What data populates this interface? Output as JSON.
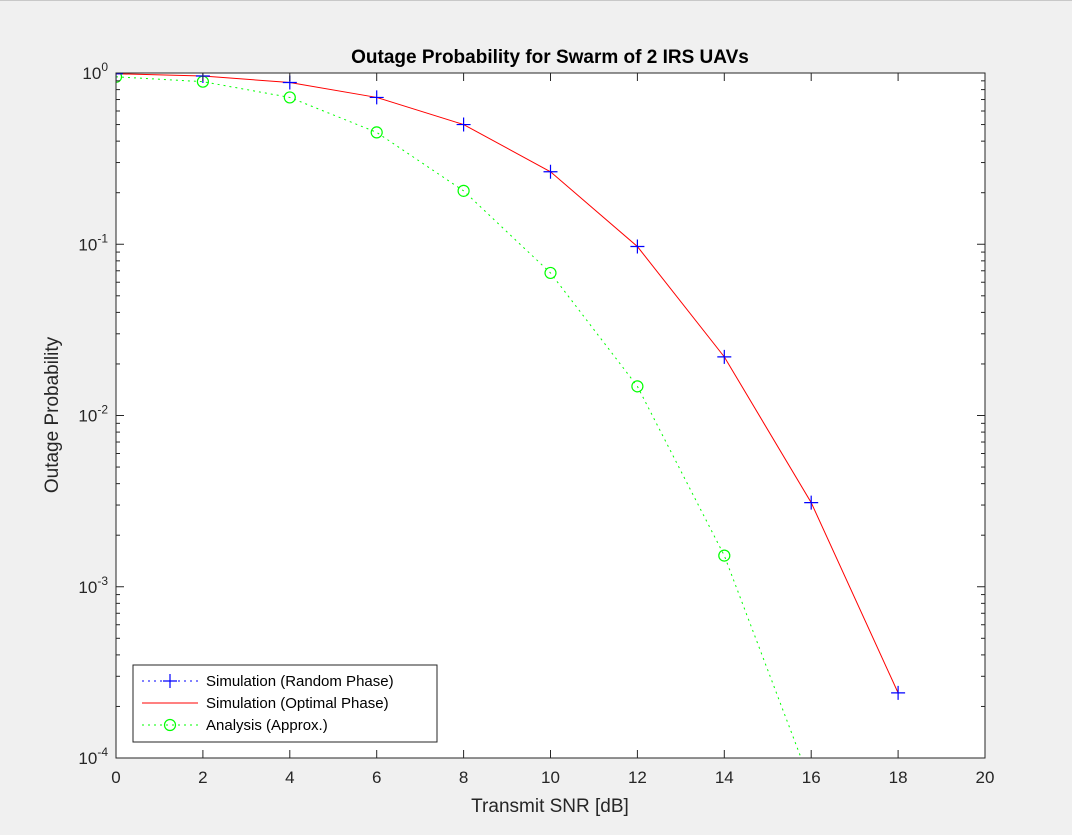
{
  "chart_data": {
    "type": "line",
    "title": "Outage Probability for Swarm of 2 IRS UAVs",
    "xlabel": "Transmit SNR [dB]",
    "ylabel": "Outage Probability",
    "xlim": [
      0,
      20
    ],
    "ylim": [
      0.0001,
      1
    ],
    "yscale": "log",
    "grid": false,
    "legend_position": "bottom-left",
    "x_ticks": [
      0,
      2,
      4,
      6,
      8,
      10,
      12,
      14,
      16,
      18,
      20
    ],
    "x_tick_labels": [
      "0",
      "2",
      "4",
      "6",
      "8",
      "10",
      "12",
      "14",
      "16",
      "18",
      "20"
    ],
    "y_ticks": [
      {
        "value": 1,
        "base": "10",
        "exp": "0"
      },
      {
        "value": 0.1,
        "base": "10",
        "exp": "-1"
      },
      {
        "value": 0.01,
        "base": "10",
        "exp": "-2"
      },
      {
        "value": 0.001,
        "base": "10",
        "exp": "-3"
      },
      {
        "value": 0.0001,
        "base": "10",
        "exp": "-4"
      }
    ],
    "series": [
      {
        "name": "Simulation (Random Phase)",
        "color": "#0000ff",
        "line_style": "dotted",
        "marker": "plus",
        "x": [
          0,
          2,
          4,
          6,
          8,
          10,
          12,
          14,
          16,
          18
        ],
        "y": [
          0.99,
          0.96,
          0.88,
          0.72,
          0.5,
          0.265,
          0.097,
          0.022,
          0.0031,
          0.00024
        ]
      },
      {
        "name": "Simulation (Optimal Phase)",
        "color": "#ff0000",
        "line_style": "solid",
        "marker": "none",
        "x": [
          0,
          2,
          4,
          6,
          8,
          10,
          12,
          14,
          16,
          18
        ],
        "y": [
          0.99,
          0.96,
          0.88,
          0.72,
          0.5,
          0.265,
          0.097,
          0.022,
          0.0031,
          0.00024
        ]
      },
      {
        "name": "Analysis (Approx.)",
        "color": "#00ff00",
        "line_style": "dotted",
        "marker": "circle",
        "x": [
          0,
          2,
          4,
          6,
          8,
          10,
          12,
          14,
          16
        ],
        "y": [
          0.95,
          0.89,
          0.72,
          0.45,
          0.205,
          0.068,
          0.0148,
          0.00152,
          7e-05
        ]
      }
    ]
  }
}
